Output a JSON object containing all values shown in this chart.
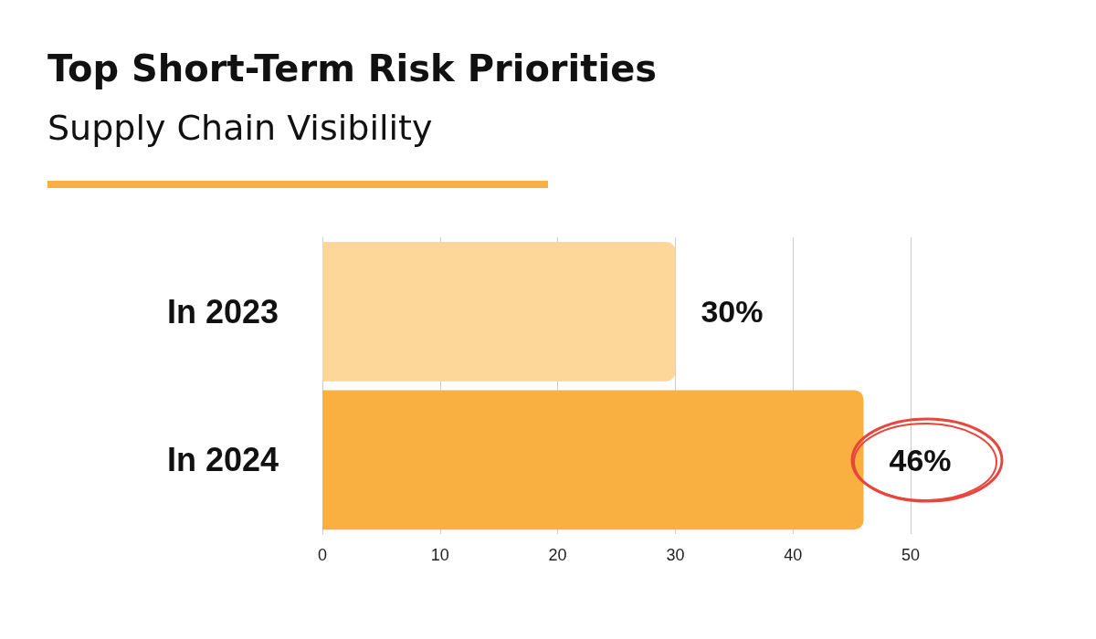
{
  "chart_data": {
    "type": "bar",
    "orientation": "horizontal",
    "title": "Top Short-Term Risk Priorities",
    "subtitle": "Supply Chain Visibility",
    "categories": [
      "In 2023",
      "In 2024"
    ],
    "values": [
      30,
      46
    ],
    "colors": [
      "#fdd699",
      "#f9b040"
    ],
    "value_labels": [
      "30%",
      "46%"
    ],
    "xlim": [
      0,
      50
    ],
    "xticks": [
      0,
      10,
      20,
      30,
      40,
      50
    ],
    "grid": "x"
  }
}
